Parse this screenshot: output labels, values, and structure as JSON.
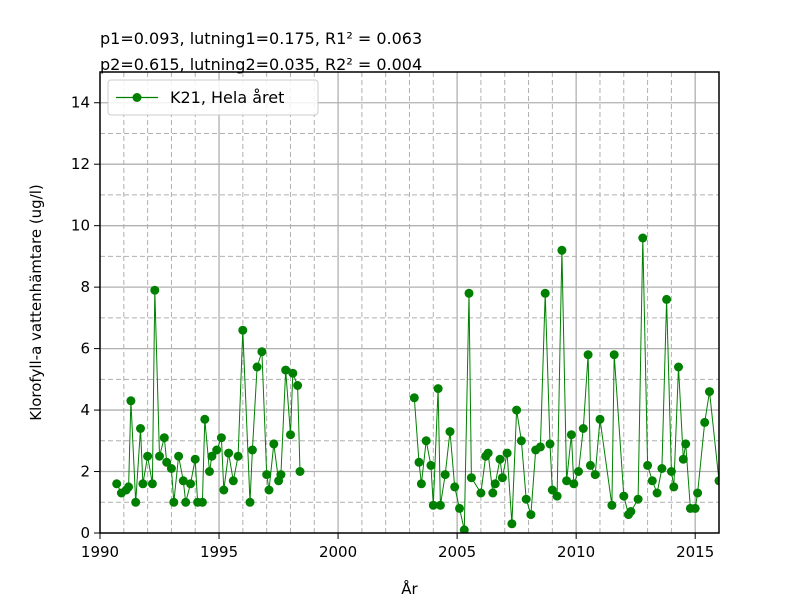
{
  "stats": {
    "line1": "p1=0.093, lutning1=0.175, R1² = 0.063",
    "line2": "p2=0.615, lutning2=0.035, R2² = 0.004"
  },
  "chart_data": {
    "type": "line",
    "xlabel": "År",
    "ylabel": "Klorofyll-a vattenhämtare (ug/l)",
    "xlim": [
      1990,
      2016
    ],
    "ylim": [
      0,
      15
    ],
    "x_ticks": [
      1990,
      1995,
      2000,
      2005,
      2010,
      2015
    ],
    "y_ticks": [
      0,
      2,
      4,
      6,
      8,
      10,
      12,
      14
    ],
    "grid": true,
    "legend_position": "top-left",
    "color": "#008000",
    "series": [
      {
        "name": "K21, Hela året",
        "segments": [
          {
            "x": [
              1990.7,
              1990.9,
              1991.1,
              1991.2,
              1991.3,
              1991.5,
              1991.7,
              1991.8,
              1992.0,
              1992.2,
              1992.3,
              1992.5,
              1992.7,
              1992.8,
              1993.0,
              1993.1,
              1993.3,
              1993.5,
              1993.6,
              1993.8,
              1994.0,
              1994.1,
              1994.3,
              1994.4,
              1994.6,
              1994.7,
              1994.9,
              1995.1,
              1995.2,
              1995.4,
              1995.6,
              1995.8,
              1996.0,
              1996.3,
              1996.4,
              1996.6,
              1996.8,
              1997.0,
              1997.1,
              1997.3,
              1997.5,
              1997.6,
              1997.8,
              1998.0,
              1998.1,
              1998.3,
              1998.4
            ],
            "y": [
              1.6,
              1.3,
              1.4,
              1.5,
              4.3,
              1.0,
              3.4,
              1.6,
              2.5,
              1.6,
              7.9,
              2.5,
              3.1,
              2.3,
              2.1,
              1.0,
              2.5,
              1.7,
              1.0,
              1.6,
              2.4,
              1.0,
              1.0,
              3.7,
              2.0,
              2.5,
              2.7,
              3.1,
              1.4,
              2.6,
              1.7,
              2.5,
              6.6,
              1.0,
              2.7,
              5.4,
              5.9,
              1.9,
              1.4,
              2.9,
              1.7,
              1.9,
              5.3,
              3.2,
              5.2,
              4.8,
              2.0
            ]
          },
          {
            "x": [
              2003.2,
              2003.4,
              2003.5,
              2003.7,
              2003.9,
              2004.0,
              2004.2,
              2004.3,
              2004.5,
              2004.7,
              2004.9,
              2005.1,
              2005.3,
              2005.5,
              2005.6,
              2006.0,
              2006.2,
              2006.3,
              2006.5,
              2006.6,
              2006.8,
              2006.9,
              2007.1,
              2007.3,
              2007.5,
              2007.7,
              2007.9,
              2008.1,
              2008.3,
              2008.5,
              2008.7,
              2008.9,
              2009.0,
              2009.2,
              2009.4,
              2009.6,
              2009.8,
              2009.9,
              2010.1,
              2010.3,
              2010.5,
              2010.6,
              2010.8,
              2011.0,
              2011.5,
              2011.6,
              2012.0,
              2012.2,
              2012.3,
              2012.6,
              2012.8,
              2013.0,
              2013.2,
              2013.4,
              2013.6,
              2013.8,
              2014.0,
              2014.1,
              2014.3,
              2014.5,
              2014.6,
              2014.8,
              2015.0,
              2015.1,
              2015.4,
              2015.6,
              2016.0
            ],
            "y": [
              4.4,
              2.3,
              1.6,
              3.0,
              2.2,
              0.9,
              4.7,
              0.9,
              1.9,
              3.3,
              1.5,
              0.8,
              0.1,
              7.8,
              1.8,
              1.3,
              2.5,
              2.6,
              1.3,
              1.6,
              2.4,
              1.8,
              2.6,
              0.3,
              4.0,
              3.0,
              1.1,
              0.6,
              2.7,
              2.8,
              7.8,
              2.9,
              1.4,
              1.2,
              9.2,
              1.7,
              3.2,
              1.6,
              2.0,
              3.4,
              5.8,
              2.2,
              1.9,
              3.7,
              0.9,
              5.8,
              1.2,
              0.6,
              0.7,
              1.1,
              9.6,
              2.2,
              1.7,
              1.3,
              2.1,
              7.6,
              2.0,
              1.5,
              5.4,
              2.4,
              2.9,
              0.8,
              0.8,
              1.3,
              3.6,
              4.6,
              1.7
            ]
          }
        ]
      }
    ]
  }
}
